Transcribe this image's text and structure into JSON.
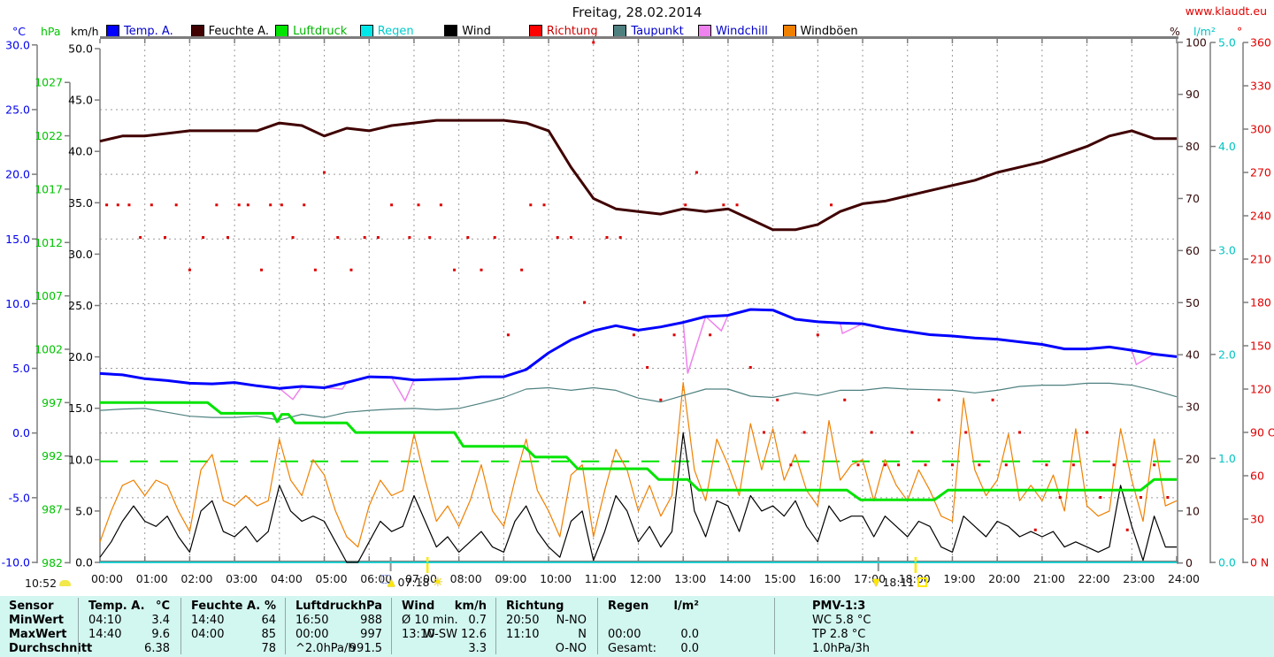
{
  "title": "Freitag, 28.02.2014",
  "website": "www.klaudt.eu",
  "axis_units": {
    "celsius": "°C",
    "hpa": "hPa",
    "kmh": "km/h",
    "percent": "%",
    "lm2": "l/m²",
    "degrees": "°"
  },
  "bottom_left_time": "10:52",
  "markers": {
    "sunrise": {
      "time": "07:18",
      "hour": 7.3
    },
    "sunset": {
      "time": "18:11",
      "hour": 18.18
    },
    "twilight_ticks_hours": [
      6.48,
      17.35
    ]
  },
  "legend": {
    "items": [
      {
        "label": "Temp. A.",
        "box": "#0000ff",
        "text": "#0000cc"
      },
      {
        "label": "Feuchte A.",
        "box": "#400000",
        "text": "#000000"
      },
      {
        "label": "Luftdruck",
        "box": "#00e400",
        "text": "#00b400"
      },
      {
        "label": "Regen",
        "box": "#00e8e8",
        "text": "#00cccc"
      },
      {
        "label": "Wind",
        "box": "#000000",
        "text": "#000000"
      },
      {
        "label": "Richtung",
        "box": "#ff0000",
        "text": "#cc0000"
      },
      {
        "label": "Taupunkt",
        "box": "#4f8080",
        "text": "#0000cc"
      },
      {
        "label": "Windchill",
        "box": "#ee82ee",
        "text": "#0000cc"
      },
      {
        "label": "Windböen",
        "box": "#f08000",
        "text": "#000000"
      }
    ]
  },
  "chart_data": {
    "type": "line",
    "title": "Freitag, 28.02.2014",
    "x_label": "time (hours 00:00–24:00)",
    "x_tick_labels": [
      "00:00",
      "01:00",
      "02:00",
      "03:00",
      "04:00",
      "05:00",
      "06:00",
      "07:00",
      "08:00",
      "09:00",
      "10:00",
      "11:00",
      "12:00",
      "13:00",
      "14:00",
      "15:00",
      "16:00",
      "17:00",
      "18:00",
      "19:00",
      "20:00",
      "21:00",
      "22:00",
      "23:00",
      "24:00"
    ],
    "grid": true,
    "legend_position": "top",
    "axes": {
      "celsius": {
        "range": [
          -10,
          30
        ],
        "tick_labels": [
          "30.0",
          "25.0",
          "20.0",
          "15.0",
          "10.0",
          "5.0",
          "0.0",
          "-5.0",
          "-10.0"
        ],
        "tick_values": [
          30,
          25,
          20,
          15,
          10,
          5,
          0,
          -5,
          -10
        ],
        "color": "#0000ee",
        "side": "left"
      },
      "hpa": {
        "range": [
          982,
          1027
        ],
        "tick_labels": [
          "1027",
          "1022",
          "1017",
          "1012",
          "1007",
          "1002",
          "997",
          "992",
          "987",
          "982"
        ],
        "tick_values": [
          1027,
          1022,
          1017,
          1012,
          1007,
          1002,
          997,
          992,
          987,
          982
        ],
        "color": "#00c400",
        "side": "left"
      },
      "kmh": {
        "range": [
          0,
          50
        ],
        "tick_labels": [
          "50.0",
          "45.0",
          "40.0",
          "35.0",
          "30.0",
          "25.0",
          "20.0",
          "15.0",
          "10.0",
          "5.0",
          "0.0"
        ],
        "tick_values": [
          50,
          45,
          40,
          35,
          30,
          25,
          20,
          15,
          10,
          5,
          0
        ],
        "color": "#000000",
        "side": "left"
      },
      "percent": {
        "range": [
          0,
          100
        ],
        "tick_labels": [
          "100",
          "90",
          "80",
          "70",
          "60",
          "50",
          "40",
          "30",
          "20",
          "10",
          "0"
        ],
        "tick_values": [
          100,
          90,
          80,
          70,
          60,
          50,
          40,
          30,
          20,
          10,
          0
        ],
        "color": "#350a0a",
        "side": "right"
      },
      "lm2": {
        "range": [
          0,
          5
        ],
        "tick_labels": [
          "5.0",
          "4.0",
          "3.0",
          "2.0",
          "1.0",
          "0.0"
        ],
        "tick_values": [
          5,
          4,
          3,
          2,
          1,
          0
        ],
        "color": "#00c4c4",
        "side": "right"
      },
      "degrees": {
        "range": [
          0,
          360
        ],
        "tick_labels": [
          "360 N",
          "330",
          "300",
          "270 W",
          "240",
          "210",
          "180 S",
          "150",
          "120",
          "90 O",
          "60",
          "30",
          "0 N"
        ],
        "tick_values": [
          360,
          330,
          300,
          270,
          240,
          210,
          180,
          150,
          120,
          90,
          60,
          30,
          0
        ],
        "color": "#e00000",
        "side": "right"
      }
    },
    "series": [
      {
        "name": "Temp. A.",
        "unit": "°C",
        "axis": "celsius",
        "color": "#0000ff",
        "width": 3,
        "step_h": 0.5,
        "values": [
          4.6,
          4.5,
          4.2,
          4.05,
          3.85,
          3.8,
          3.9,
          3.65,
          3.45,
          3.6,
          3.5,
          3.9,
          4.35,
          4.3,
          4.1,
          4.15,
          4.2,
          4.35,
          4.35,
          4.9,
          6.2,
          7.2,
          7.9,
          8.3,
          7.95,
          8.2,
          8.55,
          9.0,
          9.1,
          9.55,
          9.5,
          8.8,
          8.6,
          8.5,
          8.45,
          8.1,
          7.85,
          7.6,
          7.5,
          7.35,
          7.25,
          7.05,
          6.85,
          6.5,
          6.5,
          6.65,
          6.4,
          6.1,
          5.9
        ]
      },
      {
        "name": "Feuchte A.",
        "unit": "%",
        "axis": "percent",
        "color": "#400000",
        "width": 3,
        "step_h": 0.5,
        "values": [
          81,
          82,
          82,
          82.5,
          83,
          83,
          83,
          83,
          84.5,
          84,
          82,
          83.5,
          83,
          84,
          84.5,
          85,
          85,
          85,
          85,
          84.5,
          83,
          76,
          70,
          68,
          67.5,
          67,
          68,
          67.5,
          68,
          66,
          64,
          64,
          65,
          67.5,
          69,
          69.5,
          70.5,
          71.5,
          72.5,
          73.5,
          75,
          76,
          77,
          78.5,
          80,
          82,
          83,
          81.5,
          81.5
        ]
      },
      {
        "name": "Taupunkt",
        "unit": "°C",
        "axis": "celsius",
        "color": "#4f8080",
        "width": 1.2,
        "step_h": 0.5,
        "values": [
          1.75,
          1.85,
          1.9,
          1.6,
          1.3,
          1.2,
          1.2,
          1.3,
          1.0,
          1.45,
          1.2,
          1.6,
          1.75,
          1.85,
          1.9,
          1.8,
          1.9,
          2.3,
          2.75,
          3.4,
          3.5,
          3.3,
          3.5,
          3.3,
          2.7,
          2.4,
          2.9,
          3.4,
          3.4,
          2.85,
          2.75,
          3.1,
          2.9,
          3.3,
          3.3,
          3.5,
          3.4,
          3.35,
          3.3,
          3.1,
          3.3,
          3.6,
          3.7,
          3.7,
          3.85,
          3.85,
          3.7,
          3.3,
          2.8
        ]
      },
      {
        "name": "Wind",
        "unit": "km/h",
        "axis": "kmh",
        "color": "#000000",
        "width": 1.2,
        "step_h": 0.25,
        "values": [
          0.5,
          2,
          4,
          5.5,
          4,
          3.5,
          4.5,
          2.5,
          1,
          5,
          6,
          3,
          2.5,
          3.5,
          2,
          3,
          7.5,
          5,
          4,
          4.5,
          4,
          2,
          0,
          0,
          2,
          4,
          3,
          3.5,
          6.5,
          4,
          1.5,
          2.5,
          1,
          2,
          3,
          1.5,
          1,
          4,
          5.5,
          3,
          1.5,
          0.5,
          4,
          5,
          0.2,
          3,
          6.5,
          5,
          2,
          3.5,
          1.5,
          3,
          12.6,
          5,
          2.5,
          6,
          5.5,
          3,
          6.5,
          5,
          5.5,
          4.5,
          6,
          3.5,
          2,
          5.5,
          4,
          4.5,
          4.5,
          2.5,
          4.5,
          3.5,
          2.5,
          4,
          3.5,
          1.5,
          1,
          4.5,
          3.5,
          2.5,
          4,
          3.5,
          2.5,
          3,
          2.5,
          3,
          1.5,
          2,
          1.5,
          1,
          1.5,
          7.5,
          3.5,
          0.2,
          4.5,
          1.5,
          1.5
        ]
      },
      {
        "name": "Windböen",
        "unit": "km/h",
        "axis": "kmh",
        "color": "#f08000",
        "width": 1.2,
        "step_h": 0.25,
        "values": [
          2,
          5,
          7.5,
          8,
          6.5,
          8,
          7.5,
          5,
          3,
          9,
          10.5,
          6,
          5.5,
          6.5,
          5.5,
          6,
          12,
          8,
          6.5,
          10,
          8.5,
          5,
          2.5,
          1.5,
          5.5,
          8,
          6.5,
          7,
          12.5,
          8,
          4,
          5.5,
          3.5,
          6,
          9.5,
          5,
          3.5,
          8,
          12,
          7,
          5,
          2.5,
          8.5,
          9.5,
          2.5,
          7,
          11,
          9,
          5,
          7.5,
          4.5,
          6.5,
          17.5,
          9,
          6,
          12,
          9.5,
          6.5,
          13.5,
          9,
          13,
          8,
          10.5,
          7,
          5.5,
          13.8,
          8,
          9.5,
          10,
          6,
          10,
          7.5,
          6,
          9,
          7,
          4.5,
          4,
          16,
          9,
          6.5,
          8,
          12.5,
          6,
          7.5,
          6,
          8.5,
          5,
          13,
          5.5,
          4.5,
          5,
          13,
          8,
          4,
          12,
          5.5,
          6
        ]
      },
      {
        "name": "Regen",
        "unit": "l/m²",
        "axis": "lm2",
        "color": "#00e8e8",
        "width": 1.5,
        "step_h": 12,
        "values": [
          0,
          0,
          0
        ]
      }
    ],
    "windchill": {
      "name": "Windchill",
      "unit": "°C",
      "axis": "celsius",
      "color": "#ee82ee",
      "width": 1.5,
      "base": "Temp. A.",
      "dips": [
        [
          4.3,
          2.6
        ],
        [
          5.4,
          3.4
        ],
        [
          6.8,
          2.5
        ],
        [
          13.1,
          4.6
        ],
        [
          13.85,
          7.9
        ],
        [
          16.55,
          7.7
        ],
        [
          23.1,
          5.3
        ]
      ]
    },
    "pressure": {
      "name": "Luftdruck",
      "unit": "hPa",
      "axis": "hpa",
      "color": "#00e400",
      "width": 3,
      "points": [
        [
          0,
          997
        ],
        [
          2.4,
          997
        ],
        [
          2.7,
          996
        ],
        [
          3.85,
          996
        ],
        [
          3.95,
          995.2
        ],
        [
          4.05,
          995.9
        ],
        [
          4.2,
          995.9
        ],
        [
          4.35,
          995.1
        ],
        [
          5.5,
          995.1
        ],
        [
          5.7,
          994.2
        ],
        [
          7.9,
          994.2
        ],
        [
          8.1,
          992.9
        ],
        [
          9.45,
          992.9
        ],
        [
          9.7,
          991.9
        ],
        [
          10.4,
          991.9
        ],
        [
          10.65,
          990.8
        ],
        [
          12.2,
          990.8
        ],
        [
          12.45,
          989.8
        ],
        [
          13.1,
          989.8
        ],
        [
          13.35,
          988.8
        ],
        [
          16.65,
          988.8
        ],
        [
          16.95,
          987.9
        ],
        [
          18.6,
          987.9
        ],
        [
          18.9,
          988.8
        ],
        [
          23.2,
          988.8
        ],
        [
          23.5,
          989.8
        ],
        [
          24,
          989.8
        ]
      ],
      "average_line_hpa": 991.5
    },
    "direction_dots": {
      "name": "Richtung",
      "axis": "degrees",
      "color": "#dd0000",
      "points": [
        [
          0.15,
          247.5
        ],
        [
          0.4,
          247.5
        ],
        [
          0.65,
          247.5
        ],
        [
          0.9,
          225
        ],
        [
          1.15,
          247.5
        ],
        [
          1.45,
          225
        ],
        [
          1.7,
          247.5
        ],
        [
          2.0,
          202.5
        ],
        [
          2.3,
          225
        ],
        [
          2.6,
          247.5
        ],
        [
          2.85,
          225
        ],
        [
          3.1,
          247.5
        ],
        [
          3.3,
          247.5
        ],
        [
          3.6,
          202.5
        ],
        [
          3.8,
          247.5
        ],
        [
          4.05,
          247.5
        ],
        [
          4.3,
          225
        ],
        [
          4.55,
          247.5
        ],
        [
          4.8,
          202.5
        ],
        [
          5.0,
          270
        ],
        [
          5.3,
          225
        ],
        [
          5.6,
          202.5
        ],
        [
          5.9,
          225
        ],
        [
          6.2,
          225
        ],
        [
          6.5,
          247.5
        ],
        [
          6.9,
          225
        ],
        [
          7.1,
          247.5
        ],
        [
          7.35,
          225
        ],
        [
          7.6,
          247.5
        ],
        [
          7.9,
          202.5
        ],
        [
          8.2,
          225
        ],
        [
          8.5,
          202.5
        ],
        [
          8.8,
          225
        ],
        [
          9.1,
          157.5
        ],
        [
          9.4,
          202.5
        ],
        [
          9.6,
          247.5
        ],
        [
          9.9,
          247.5
        ],
        [
          10.2,
          225
        ],
        [
          10.5,
          225
        ],
        [
          10.8,
          180
        ],
        [
          11.0,
          360
        ],
        [
          11.3,
          225
        ],
        [
          11.6,
          225
        ],
        [
          11.9,
          157.5
        ],
        [
          12.2,
          135
        ],
        [
          12.5,
          112.5
        ],
        [
          12.8,
          157.5
        ],
        [
          13.05,
          247.5
        ],
        [
          13.3,
          270
        ],
        [
          13.6,
          157.5
        ],
        [
          13.9,
          247.5
        ],
        [
          14.2,
          247.5
        ],
        [
          14.5,
          135
        ],
        [
          14.8,
          90
        ],
        [
          15.1,
          112.5
        ],
        [
          15.4,
          67.5
        ],
        [
          15.7,
          90
        ],
        [
          16.0,
          157.5
        ],
        [
          16.3,
          247.5
        ],
        [
          16.6,
          112.5
        ],
        [
          16.9,
          67.5
        ],
        [
          17.2,
          90
        ],
        [
          17.5,
          67.5
        ],
        [
          17.8,
          67.5
        ],
        [
          18.1,
          90
        ],
        [
          18.4,
          67.5
        ],
        [
          18.7,
          112.5
        ],
        [
          19.0,
          67.5
        ],
        [
          19.3,
          90
        ],
        [
          19.6,
          67.5
        ],
        [
          19.9,
          112.5
        ],
        [
          20.2,
          67.5
        ],
        [
          20.5,
          90
        ],
        [
          20.85,
          22.5
        ],
        [
          21.1,
          67.5
        ],
        [
          21.4,
          45
        ],
        [
          21.7,
          67.5
        ],
        [
          22.0,
          90
        ],
        [
          22.3,
          45
        ],
        [
          22.6,
          67.5
        ],
        [
          22.9,
          22.5
        ],
        [
          23.2,
          45
        ],
        [
          23.5,
          67.5
        ],
        [
          23.8,
          45
        ]
      ]
    }
  },
  "stats": {
    "row_labels": [
      "Sensor",
      "MinWert",
      "MaxWert",
      "Durchschnitt"
    ],
    "columns": [
      {
        "name": "Temp. A.",
        "unit": "°C",
        "min": [
          "04:10",
          "3.4"
        ],
        "max": [
          "14:40",
          "9.6"
        ],
        "avg": [
          "",
          "6.38"
        ]
      },
      {
        "name": "Feuchte A.",
        "unit": "%",
        "min": [
          "14:40",
          "64"
        ],
        "max": [
          "04:00",
          "85"
        ],
        "avg": [
          "",
          "78"
        ]
      },
      {
        "name": "Luftdruck",
        "unit": "hPa",
        "min": [
          "16:50",
          "988"
        ],
        "max": [
          "00:00",
          "997"
        ],
        "avg": [
          "^2.0hPa/h",
          "991.5"
        ]
      },
      {
        "name": "Wind",
        "unit": "km/h",
        "min": [
          "Ø 10 min.",
          "0.7"
        ],
        "max": [
          "13:10",
          "W-SW 12.6"
        ],
        "avg": [
          "",
          "3.3"
        ]
      },
      {
        "name": "Richtung",
        "unit": "",
        "min": [
          "20:50",
          "N-NO"
        ],
        "max": [
          "11:10",
          "N"
        ],
        "avg": [
          "",
          "O-NO"
        ]
      },
      {
        "name": "Regen",
        "unit": "l/m²",
        "min": [
          "",
          ""
        ],
        "max": [
          "00:00",
          "0.0"
        ],
        "avg": [
          "Gesamt:",
          "0.0"
        ]
      }
    ],
    "pmv": {
      "title": "PMV-1:3",
      "lines": [
        "WC 5.8 °C",
        "TP 2.8 °C",
        "1.0hPa/3h"
      ]
    }
  }
}
